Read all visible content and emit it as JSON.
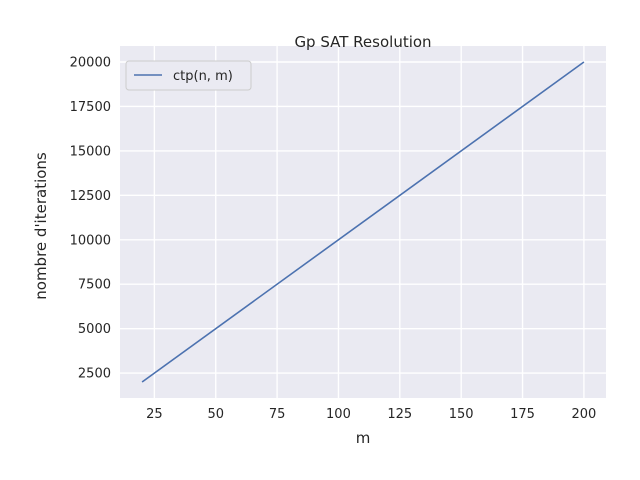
{
  "chart_data": {
    "type": "line",
    "title": "Gp SAT Resolution",
    "xlabel": "m",
    "ylabel": "nombre d'iterations",
    "x": [
      20,
      200
    ],
    "series": [
      {
        "name": "ctp(n, m)",
        "values": [
          2000,
          20000
        ],
        "color": "#4c72b0"
      }
    ],
    "xlim": [
      11,
      209
    ],
    "ylim": [
      1100,
      20900
    ],
    "xticks": [
      25,
      50,
      75,
      100,
      125,
      150,
      175,
      200
    ],
    "yticks": [
      2500,
      5000,
      7500,
      10000,
      12500,
      15000,
      17500,
      20000
    ],
    "grid": true,
    "legend_position": "top-left",
    "background_color": "#eaeaf2",
    "grid_color": "#ffffff"
  }
}
